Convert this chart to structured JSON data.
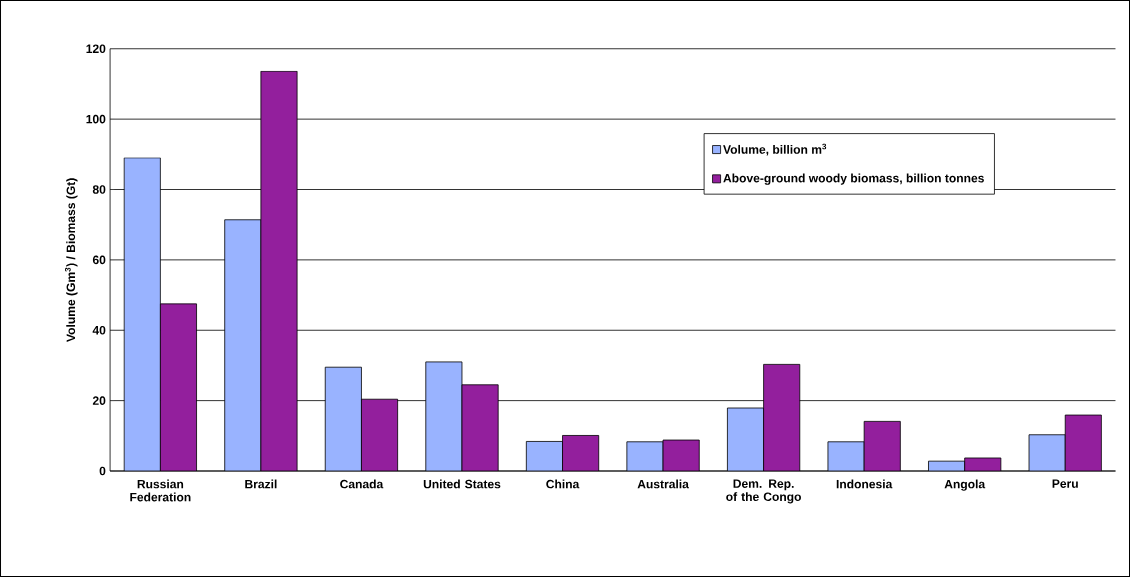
{
  "chart_data": {
    "type": "bar",
    "ylabel": "Volume (Gm$^{3}$) / Biomass (Gt)",
    "categories": [
      "Russian Federation",
      "Brazil",
      "Canada",
      "United States",
      "China",
      "Australia",
      "Dem. Rep. of the Congo",
      "Indonesia",
      "Angola",
      "Peru"
    ],
    "series": [
      {
        "name": "Volume, billion m$^{3}$",
        "color": "#99b3ff",
        "values": [
          89,
          71.4,
          29.5,
          31,
          8.4,
          8.3,
          17.9,
          8.3,
          2.8,
          10.3
        ]
      },
      {
        "name": "Above-ground woody biomass, billion tonnes",
        "color": "#931f9d",
        "values": [
          47.5,
          113.6,
          20.4,
          24.5,
          10.1,
          8.8,
          30.3,
          14.1,
          3.7,
          15.9
        ]
      }
    ],
    "ylim": [
      0,
      120
    ],
    "yticks": [
      0,
      20,
      40,
      60,
      80,
      100,
      120
    ],
    "grid": "y",
    "legend": "top right"
  }
}
